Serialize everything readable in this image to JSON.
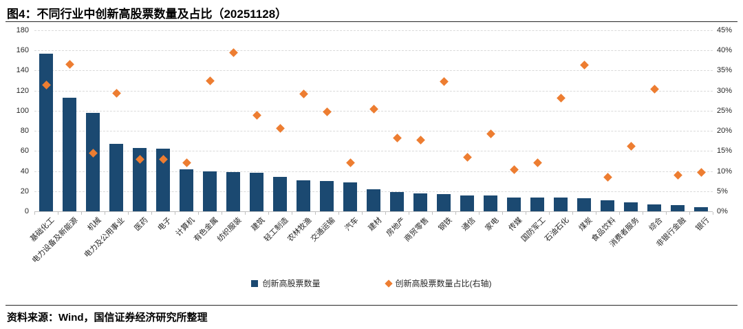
{
  "header": {
    "title": "图4：不同行业中创新高股票数量及占比（20251128）"
  },
  "footer": {
    "source": "资料来源：Wind，国信证券经济研究所整理"
  },
  "colors": {
    "bar": "#1B4971",
    "scatter": "#ED7D31",
    "grid": "#D9D9D9",
    "axis": "#BFBFBF"
  },
  "legend": {
    "items": [
      {
        "label": "创新高股票数量",
        "marker": "square",
        "color": "#1B4971"
      },
      {
        "label": "创新高股票数量占比(右轴)",
        "marker": "diamond",
        "color": "#ED7D31"
      }
    ]
  },
  "chart_data": {
    "type": "bar",
    "title": "图4：不同行业中创新高股票数量及占比（20251128）",
    "categories": [
      "基础化工",
      "电力设备及新能源",
      "机械",
      "电力及公用事业",
      "医药",
      "电子",
      "计算机",
      "有色金属",
      "纺织服装",
      "建筑",
      "轻工制造",
      "农林牧渔",
      "交通运输",
      "汽车",
      "建材",
      "房地产",
      "商贸零售",
      "钢铁",
      "通信",
      "家电",
      "传媒",
      "国防军工",
      "石油石化",
      "煤炭",
      "食品饮料",
      "消费者服务",
      "综合",
      "非银行金融",
      "银行"
    ],
    "series": [
      {
        "name": "创新高股票数量",
        "type": "bar",
        "axis": "left",
        "color": "#1B4971",
        "values": [
          157,
          113,
          98,
          67,
          63,
          62,
          42,
          40,
          39,
          38,
          34,
          31,
          30,
          29,
          22,
          19,
          18,
          17,
          16,
          16,
          14,
          14,
          14,
          13,
          11,
          9,
          7,
          6,
          4
        ]
      },
      {
        "name": "创新高股票数量占比(右轴)",
        "type": "scatter",
        "axis": "right",
        "color": "#ED7D31",
        "values_pct": [
          31.4,
          36.6,
          14.4,
          29.4,
          13.0,
          12.9,
          12.0,
          32.4,
          39.5,
          23.8,
          20.7,
          29.1,
          24.8,
          12.1,
          25.4,
          18.3,
          17.7,
          32.3,
          13.5,
          19.2,
          10.4,
          12.0,
          28.2,
          36.3,
          8.5,
          16.2,
          30.4,
          8.9,
          9.7
        ]
      }
    ],
    "left_axis": {
      "min": 0,
      "max": 180,
      "step": 20,
      "tick_labels": [
        "0",
        "20",
        "40",
        "60",
        "80",
        "100",
        "120",
        "140",
        "160",
        "180"
      ]
    },
    "right_axis": {
      "min": 0,
      "max": 45,
      "step": 5,
      "tick_labels": [
        "0%",
        "5%",
        "10%",
        "15%",
        "20%",
        "25%",
        "30%",
        "35%",
        "40%",
        "45%"
      ]
    },
    "grid": "horizontal-dashed",
    "legend_position": "bottom-center"
  }
}
